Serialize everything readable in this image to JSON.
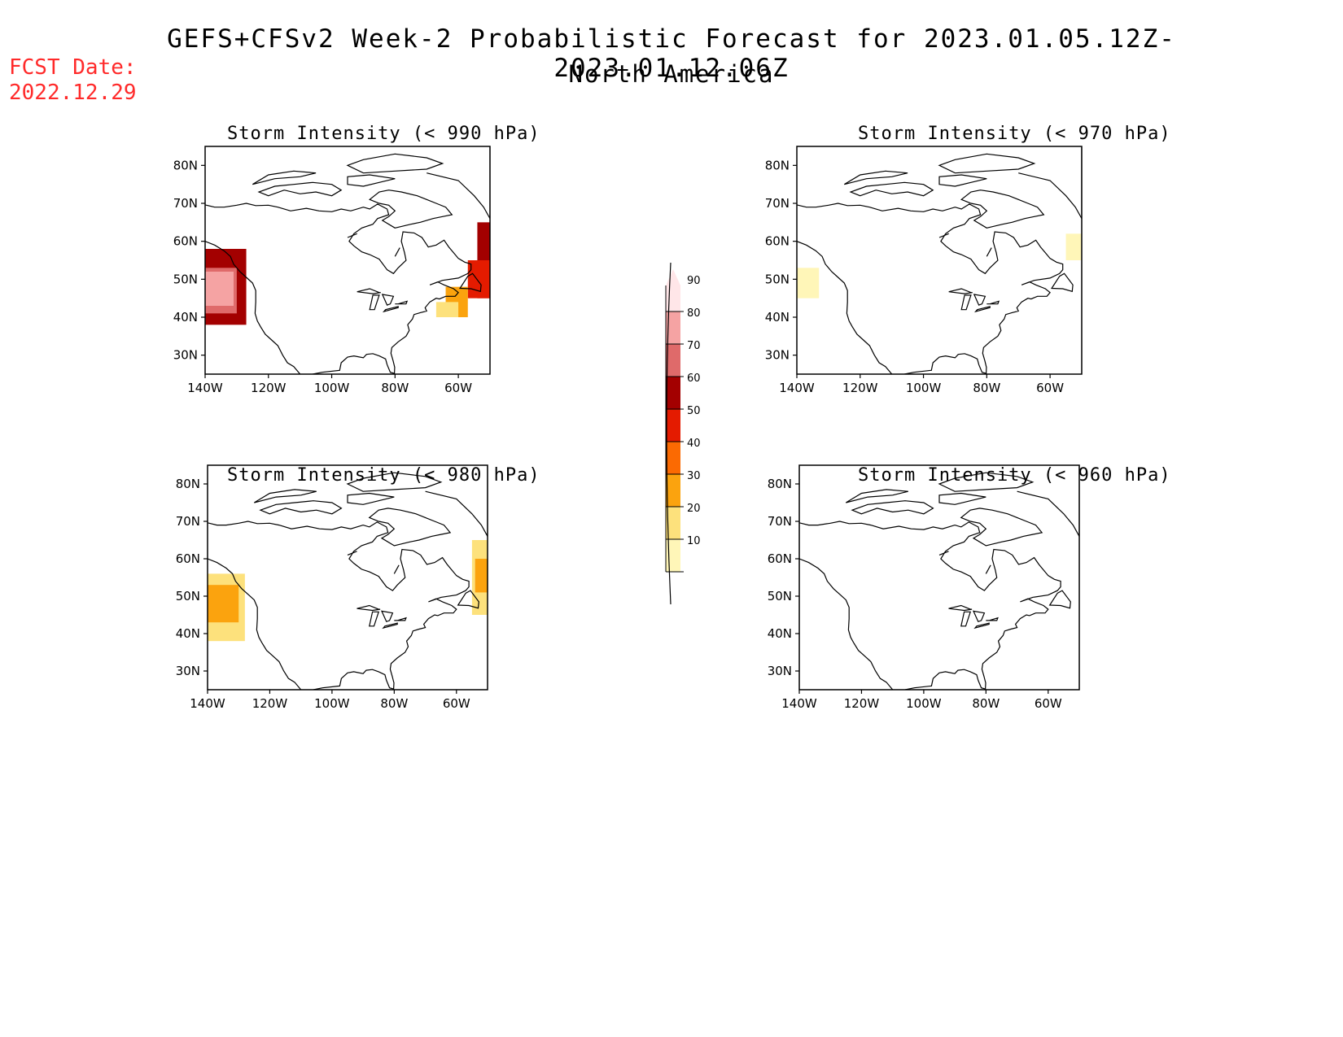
{
  "header": {
    "title": "GEFS+CFSv2 Week-2 Probabilistic Forecast for 2023.01.05.12Z-2023.01.12.06Z",
    "subtitle": "North America",
    "fcst_label": "FCST Date:",
    "fcst_date": "2022.12.29"
  },
  "map_axes": {
    "lat_ticks": [
      "80N",
      "70N",
      "60N",
      "50N",
      "40N",
      "30N"
    ],
    "lon_ticks": [
      "140W",
      "120W",
      "100W",
      "80W",
      "60W"
    ],
    "lat_values": [
      80,
      70,
      60,
      50,
      40,
      30
    ],
    "lon_values": [
      -140,
      -120,
      -100,
      -80,
      -60
    ],
    "extent": {
      "lon_min": -140,
      "lon_max": -50,
      "lat_min": 25,
      "lat_max": 85
    }
  },
  "colorbar": {
    "levels": [
      "10",
      "20",
      "30",
      "40",
      "50",
      "60",
      "70",
      "80",
      "90"
    ],
    "colors": [
      "#fff6b8",
      "#fde17c",
      "#fba30e",
      "#fb6a02",
      "#e41b00",
      "#a30000",
      "#df6a6a",
      "#f5a3a3",
      "#ffe6e8"
    ]
  },
  "panels": [
    {
      "id": "p990",
      "title": "Storm Intensity (< 990 hPa)",
      "regions": [
        {
          "level": "60",
          "lon": [
            -140,
            -127
          ],
          "lat": [
            38,
            58
          ]
        },
        {
          "level": "70",
          "lon": [
            -140,
            -130
          ],
          "lat": [
            41,
            53
          ]
        },
        {
          "level": "80",
          "lon": [
            -140,
            -131
          ],
          "lat": [
            43,
            52
          ]
        },
        {
          "level": "60",
          "lon": [
            -54,
            -50
          ],
          "lat": [
            45,
            65
          ]
        },
        {
          "level": "50",
          "lon": [
            -57,
            -50
          ],
          "lat": [
            45,
            55
          ]
        },
        {
          "level": "30",
          "lon": [
            -64,
            -57
          ],
          "lat": [
            40,
            48
          ]
        },
        {
          "level": "20",
          "lon": [
            -67,
            -60
          ],
          "lat": [
            40,
            44
          ]
        }
      ]
    },
    {
      "id": "p970",
      "title": "Storm Intensity (< 970 hPa)",
      "regions": [
        {
          "level": "10",
          "lon": [
            -140,
            -133
          ],
          "lat": [
            45,
            53
          ]
        },
        {
          "level": "10",
          "lon": [
            -55,
            -50
          ],
          "lat": [
            55,
            62
          ]
        }
      ]
    },
    {
      "id": "p980",
      "title": "Storm Intensity (< 980 hPa)",
      "regions": [
        {
          "level": "20",
          "lon": [
            -140,
            -128
          ],
          "lat": [
            38,
            56
          ]
        },
        {
          "level": "30",
          "lon": [
            -140,
            -130
          ],
          "lat": [
            43,
            53
          ]
        },
        {
          "level": "20",
          "lon": [
            -55,
            -50
          ],
          "lat": [
            45,
            65
          ]
        },
        {
          "level": "30",
          "lon": [
            -54,
            -50
          ],
          "lat": [
            51,
            60
          ]
        }
      ]
    },
    {
      "id": "p960",
      "title": "Storm Intensity (< 960 hPa)",
      "regions": []
    }
  ]
}
